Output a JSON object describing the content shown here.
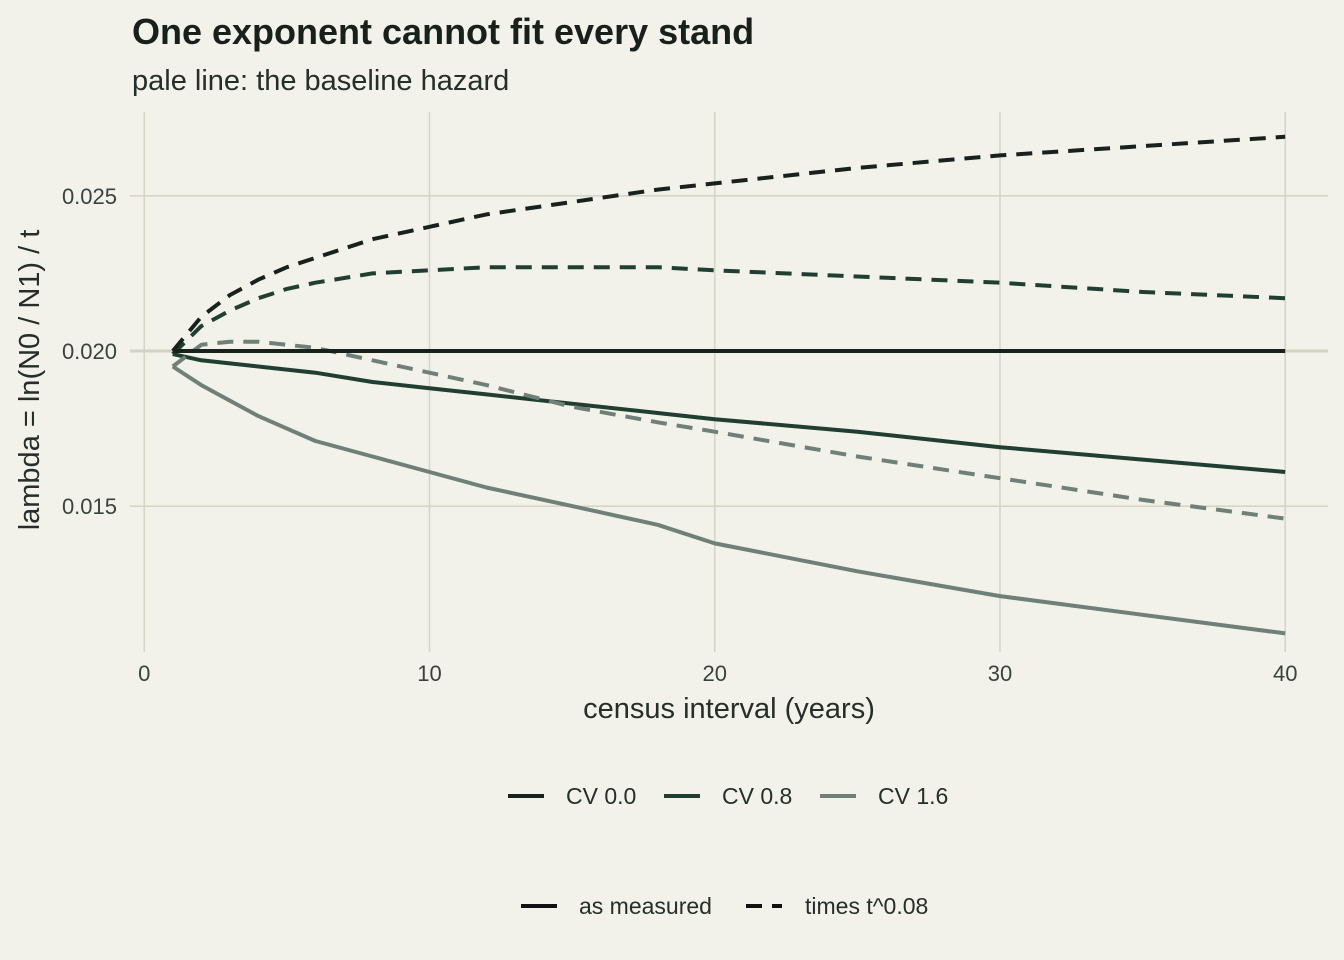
{
  "chart_data": {
    "type": "line",
    "title": "One exponent cannot fit every stand",
    "subtitle": "pale line: the baseline hazard",
    "xlabel": "census interval (years)",
    "ylabel": "lambda = ln(N0 / N1) / t",
    "xlim": [
      -0.5,
      41.5
    ],
    "ylim": [
      0.0103,
      0.0277
    ],
    "x_ticks": [
      0,
      10,
      20,
      30,
      40
    ],
    "y_ticks": [
      0.015,
      0.02,
      0.025
    ],
    "y_tick_labels": [
      "0.015",
      "0.020",
      "0.025"
    ],
    "grid": true,
    "baseline_hazard": 0.02,
    "colors": {
      "background": "#f2f1ea",
      "grid": "#d6d6c6",
      "baseline": "#d3d3c1",
      "cv_0.0": "#18221d",
      "cv_0.8": "#213f30",
      "cv_1.6": "#6e8077"
    },
    "x": [
      1,
      2,
      3,
      4,
      5,
      6,
      8,
      10,
      12,
      15,
      18,
      20,
      25,
      30,
      35,
      40
    ],
    "series": [
      {
        "name": "CV 0.0",
        "linetype": "as measured",
        "color_key": "cv_0.0",
        "values": [
          0.02,
          0.02,
          0.02,
          0.02,
          0.02,
          0.02,
          0.02,
          0.02,
          0.02,
          0.02,
          0.02,
          0.02,
          0.02,
          0.02,
          0.02,
          0.02
        ]
      },
      {
        "name": "CV 0.8",
        "linetype": "as measured",
        "color_key": "cv_0.8",
        "values": [
          0.0199,
          0.0197,
          0.0196,
          0.0195,
          0.0194,
          0.0193,
          0.019,
          0.0188,
          0.0186,
          0.0183,
          0.018,
          0.0178,
          0.0174,
          0.0169,
          0.0165,
          0.0161
        ]
      },
      {
        "name": "CV 1.6",
        "linetype": "as measured",
        "color_key": "cv_1.6",
        "values": [
          0.0195,
          0.0189,
          0.0184,
          0.0179,
          0.0175,
          0.0171,
          0.0166,
          0.0161,
          0.0156,
          0.015,
          0.0144,
          0.0138,
          0.0129,
          0.0121,
          0.0115,
          0.0109
        ]
      },
      {
        "name": "CV 0.0",
        "linetype": "times t^0.08",
        "color_key": "cv_0.0",
        "values": [
          0.02,
          0.0211,
          0.0218,
          0.0223,
          0.0227,
          0.023,
          0.0236,
          0.024,
          0.0244,
          0.0248,
          0.0252,
          0.0254,
          0.0259,
          0.0263,
          0.0266,
          0.0269
        ]
      },
      {
        "name": "CV 0.8",
        "linetype": "times t^0.08",
        "color_key": "cv_0.8",
        "values": [
          0.0199,
          0.0208,
          0.0213,
          0.0217,
          0.022,
          0.0222,
          0.0225,
          0.0226,
          0.0227,
          0.0227,
          0.0227,
          0.0226,
          0.0224,
          0.0222,
          0.0219,
          0.0217
        ]
      },
      {
        "name": "CV 1.6",
        "linetype": "times t^0.08",
        "color_key": "cv_1.6",
        "values": [
          0.0195,
          0.0202,
          0.0203,
          0.0203,
          0.0202,
          0.0201,
          0.0197,
          0.0193,
          0.0189,
          0.0182,
          0.0177,
          0.0174,
          0.0166,
          0.0159,
          0.0152,
          0.0146
        ]
      }
    ],
    "legend_placement": "bottom",
    "legend_color": [
      "CV 0.0",
      "CV 0.8",
      "CV 1.6"
    ],
    "legend_linetype": [
      "as measured",
      "times t^0.08"
    ]
  }
}
